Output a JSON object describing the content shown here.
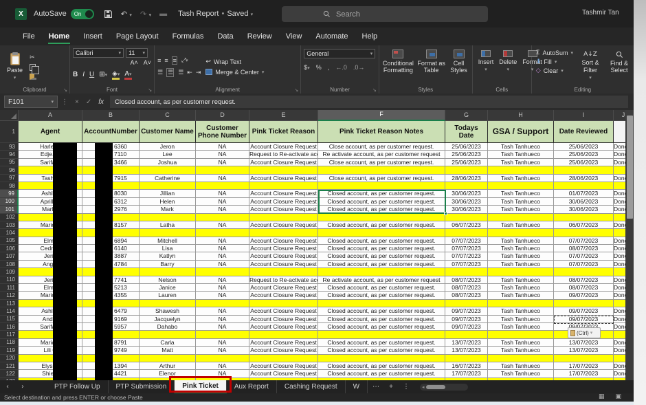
{
  "titlebar": {
    "autosave_label": "AutoSave",
    "autosave_state": "On",
    "doc_title": "Tash Report",
    "doc_status": "Saved",
    "search_placeholder": "Search",
    "user_name": "Tashmir Tan"
  },
  "menu": {
    "items": [
      "File",
      "Home",
      "Insert",
      "Page Layout",
      "Formulas",
      "Data",
      "Review",
      "View",
      "Automate",
      "Help"
    ],
    "active": "Home"
  },
  "ribbon": {
    "clipboard": {
      "paste": "Paste",
      "label": "Clipboard"
    },
    "font": {
      "font_name": "Calibri",
      "font_size": "11",
      "bold": "B",
      "italic": "I",
      "underline": "U",
      "label": "Font"
    },
    "alignment": {
      "wrap": "Wrap Text",
      "merge": "Merge & Center",
      "label": "Alignment"
    },
    "number": {
      "format": "General",
      "label": "Number"
    },
    "styles": {
      "conditional": "Conditional Formatting",
      "format_table": "Format as Table",
      "cell_styles": "Cell Styles",
      "label": "Styles"
    },
    "cells": {
      "insert": "Insert",
      "delete": "Delete",
      "format": "Format",
      "label": "Cells"
    },
    "editing": {
      "autosum": "AutoSum",
      "fill": "Fill",
      "clear": "Clear",
      "sort": "Sort & Filter",
      "find": "Find & Select",
      "label": "Editing"
    }
  },
  "formula_bar": {
    "name_box": "F101",
    "value": "Closed account, as per customer request."
  },
  "grid": {
    "col_letters": [
      "A",
      "B",
      "C",
      "D",
      "E",
      "F",
      "G",
      "H",
      "I",
      "J"
    ],
    "selected_col": "F",
    "header_row_num": "1",
    "headers": [
      "Agent",
      "AccountNumber",
      "Customer Name",
      "Customer Phone Number",
      "Pink Ticket Reason",
      "Pink Ticket Reason Notes",
      "Todays Date",
      "GSA / Support",
      "Date Reviewed",
      ""
    ],
    "rows": [
      {
        "n": 93,
        "blank": false,
        "agent": "Harlene",
        "acct": "6360",
        "name": "Jeron",
        "phone": "NA",
        "reason": "Account Closure Request",
        "notes": "Close account, as per customer request.",
        "date": "25/06/2023",
        "gsa": "Tash Tanhueco",
        "reviewed": "25/06/2023",
        "status": "Done"
      },
      {
        "n": 94,
        "blank": false,
        "agent": "Edje.se",
        "acct": "7110",
        "name": "Lee",
        "phone": "NA",
        "reason": "Request to Re-activate account",
        "notes": "Re activate account, as per customer request",
        "date": "25/06/2023",
        "gsa": "Tash Tanhueco",
        "reviewed": "25/06/2023",
        "status": "Done"
      },
      {
        "n": 95,
        "blank": false,
        "agent": "Sarifa T",
        "acct": "3466",
        "name": "Joshua",
        "phone": "NA",
        "reason": "Account Closure Request",
        "notes": "Close account, as per customer request.",
        "date": "25/06/2023",
        "gsa": "Tash Tanhueco",
        "reviewed": "25/06/2023",
        "status": "Done"
      },
      {
        "n": 96,
        "blank": true
      },
      {
        "n": 97,
        "blank": false,
        "agent": "Tash T",
        "acct": "7915",
        "name": "Catherine",
        "phone": "NA",
        "reason": "Account Closure Request",
        "notes": "Close account, as per customer request.",
        "date": "28/06/2023",
        "gsa": "Tash Tanhueco",
        "reviewed": "28/06/2023",
        "status": "Done"
      },
      {
        "n": 98,
        "blank": true
      },
      {
        "n": 99,
        "blank": false,
        "agent": "Ashley",
        "acct": "8030",
        "name": "Jillian",
        "phone": "NA",
        "reason": "Account Closure Request",
        "notes": "Closed account, as per customer request.",
        "date": "30/06/2023",
        "gsa": "Tash Tanhueco",
        "reviewed": "01/07/2023",
        "status": "Done"
      },
      {
        "n": 100,
        "blank": false,
        "agent": "AprilMa",
        "acct": "6312",
        "name": "Helen",
        "phone": "NA",
        "reason": "Account Closure Request",
        "notes": "Closed account, as per customer request.",
        "date": "30/06/2023",
        "gsa": "Tash Tanhueco",
        "reviewed": "30/06/2023",
        "status": "Done"
      },
      {
        "n": 101,
        "blank": false,
        "agent": "MarLp",
        "acct": "2976",
        "name": "Mark",
        "phone": "NA",
        "reason": "Account Closure Request",
        "notes": "Closed account, as per customer request.",
        "date": "30/06/2023",
        "gsa": "Tash Tanhueco",
        "reviewed": "30/06/2023",
        "status": "Done"
      },
      {
        "n": 102,
        "blank": true
      },
      {
        "n": 103,
        "blank": false,
        "agent": "Maricar",
        "acct": "8157",
        "name": "Latha",
        "phone": "NA",
        "reason": "Account Closure Request",
        "notes": "Closed account, as per customer request.",
        "date": "06/07/2023",
        "gsa": "Tash Tanhueco",
        "reviewed": "06/07/2023",
        "status": "Done"
      },
      {
        "n": 104,
        "blank": true
      },
      {
        "n": 105,
        "blank": false,
        "agent": "Elmo",
        "acct": "6894",
        "name": "Mitchell",
        "phone": "NA",
        "reason": "Account Closure Request",
        "notes": "Closed account, as per customer request.",
        "date": "07/07/2023",
        "gsa": "Tash Tanhueco",
        "reviewed": "07/07/2023",
        "status": "Done"
      },
      {
        "n": 106,
        "blank": false,
        "agent": "Cedrick",
        "acct": "6140",
        "name": "Lisa",
        "phone": "NA",
        "reason": "Account Closure Request",
        "notes": "Closed account, as per customer request.",
        "date": "07/07/2023",
        "gsa": "Tash Tanhueco",
        "reviewed": "08/07/2023",
        "status": "Done"
      },
      {
        "n": 107,
        "blank": false,
        "agent": "Jeric",
        "acct": "3887",
        "name": "Katlyn",
        "phone": "NA",
        "reason": "Account Closure Request",
        "notes": "Closed account, as per customer request.",
        "date": "07/07/2023",
        "gsa": "Tash Tanhueco",
        "reviewed": "07/07/2023",
        "status": "Done"
      },
      {
        "n": 108,
        "blank": false,
        "agent": "Angel",
        "acct": "4784",
        "name": "Barry",
        "phone": "NA",
        "reason": "Account Closure Request",
        "notes": "Closed account, as per customer request.",
        "date": "07/07/2023",
        "gsa": "Tash Tanhueco",
        "reviewed": "07/07/2023",
        "status": "Done"
      },
      {
        "n": 109,
        "blank": true
      },
      {
        "n": 110,
        "blank": false,
        "agent": "Jeric",
        "acct": "7741",
        "name": "Nelson",
        "phone": "NA",
        "reason": "Request to Re-activate account",
        "notes": "Re activate account, as per customer request",
        "date": "08/07/2023",
        "gsa": "Tash Tanhueco",
        "reviewed": "08/07/2023",
        "status": "Done"
      },
      {
        "n": 111,
        "blank": false,
        "agent": "Elmo",
        "acct": "5213",
        "name": "Janice",
        "phone": "NA",
        "reason": "Account Closure Request",
        "notes": "Closed account, as per customer request.",
        "date": "08/07/2023",
        "gsa": "Tash Tanhueco",
        "reviewed": "08/07/2023",
        "status": "Done"
      },
      {
        "n": 112,
        "blank": false,
        "agent": "Maricar",
        "acct": "4355",
        "name": "Lauren",
        "phone": "NA",
        "reason": "Account Closure Request",
        "notes": "Closed account, as per customer request.",
        "date": "08/07/2023",
        "gsa": "Tash Tanhueco",
        "reviewed": "09/07/2023",
        "status": "Done"
      },
      {
        "n": 113,
        "blank": true
      },
      {
        "n": 114,
        "blank": false,
        "agent": "Ashley",
        "acct": "6479",
        "name": "Shawesh",
        "phone": "NA",
        "reason": "Account Closure Request",
        "notes": "Closed account, as per customer request.",
        "date": "09/07/2023",
        "gsa": "Tash Tanhueco",
        "reviewed": "09/07/2023",
        "status": "Done"
      },
      {
        "n": 115,
        "blank": false,
        "agent": "Andre",
        "acct": "9169",
        "name": "Jacquelyn",
        "phone": "NA",
        "reason": "Account Closure Request",
        "notes": "Closed account, as per customer request.",
        "date": "09/07/2023",
        "gsa": "Tash Tanhueco",
        "reviewed": "09/07/2023",
        "status": "Done"
      },
      {
        "n": 116,
        "blank": false,
        "agent": "Sarifa T",
        "acct": "5957",
        "name": "Dahabo",
        "phone": "NA",
        "reason": "Account Closure Request",
        "notes": "Closed account, as per customer request.",
        "date": "09/07/2023",
        "gsa": "Tash Tanhueco",
        "reviewed": "09/07/2023",
        "status": "Done"
      },
      {
        "n": 117,
        "blank": true
      },
      {
        "n": 118,
        "blank": false,
        "agent": "Maricar",
        "acct": "8791",
        "name": "Carla",
        "phone": "NA",
        "reason": "Account Closure Request",
        "notes": "Closed account, as per customer request.",
        "date": "13/07/2023",
        "gsa": "Tash Tanhueco",
        "reviewed": "13/07/2023",
        "status": "Done"
      },
      {
        "n": 119,
        "blank": false,
        "agent": "Lili C",
        "acct": "9749",
        "name": "Matt",
        "phone": "NA",
        "reason": "Account Closure Request",
        "notes": "Closed account, as per customer request.",
        "date": "13/07/2023",
        "gsa": "Tash Tanhueco",
        "reviewed": "13/07/2023",
        "status": "Done"
      },
      {
        "n": 120,
        "blank": true
      },
      {
        "n": 121,
        "blank": false,
        "agent": "Elyssa",
        "acct": "1394",
        "name": "Arthur",
        "phone": "NA",
        "reason": "Account Closure Request",
        "notes": "Closed account, as per customer request.",
        "date": "16/07/2023",
        "gsa": "Tash Tanhueco",
        "reviewed": "17/07/2023",
        "status": "Done"
      },
      {
        "n": 122,
        "blank": false,
        "agent": "Shiela",
        "acct": "4421",
        "name": "Elenor",
        "phone": "NA",
        "reason": "Account Closure Request",
        "notes": "Closed account, as per customer request.",
        "date": "17/07/2023",
        "gsa": "Tash Tanhueco",
        "reviewed": "17/07/2023",
        "status": "Done"
      },
      {
        "n": 123,
        "blank": true
      }
    ],
    "selection": {
      "active_cell": "F101",
      "range": "F99:F101",
      "copied_cell": "I115"
    }
  },
  "overlays": {
    "paste_button_label": "(Ctrl)"
  },
  "sheet_tabs": {
    "tabs": [
      "PTP Follow Up",
      "PTP Submission",
      "Pink Ticket",
      "Aux Report",
      "Cashing Request",
      "W"
    ],
    "active": "Pink Ticket"
  },
  "status_bar": {
    "message": "Select destination and press ENTER or choose Paste"
  },
  "colors": {
    "accent_green": "#217346",
    "selection_green": "#1a7f4b",
    "row_highlight_yellow": "#ffff00",
    "header_green": "#cbdfb4",
    "annotation_red": "#c00000"
  }
}
